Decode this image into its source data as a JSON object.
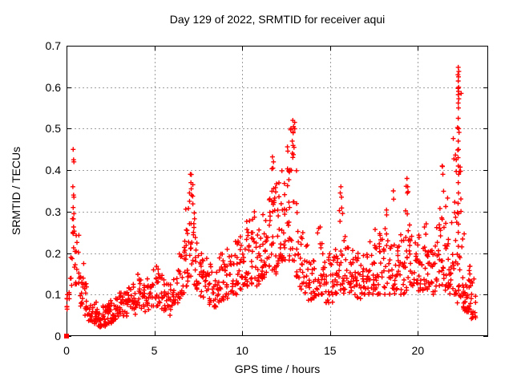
{
  "chart_data": {
    "type": "scatter",
    "title": "Day 129 of 2022, SRMTID for receiver aqui",
    "xlabel": "GPS time / hours",
    "ylabel": "SRMTID / TECUs",
    "xlim": [
      0,
      24
    ],
    "ylim": [
      0,
      0.7
    ],
    "xticks": {
      "values": [
        0,
        5,
        10,
        15,
        20
      ],
      "labels": [
        "0",
        "5",
        "10",
        "15",
        "20"
      ]
    },
    "yticks": {
      "values": [
        0,
        0.1,
        0.2,
        0.3,
        0.4,
        0.5,
        0.6,
        0.7
      ],
      "labels": [
        "0",
        "0.1",
        "0.2",
        "0.3",
        "0.4",
        "0.5",
        "0.6",
        "0.7"
      ]
    },
    "grid": true,
    "grid_color": "#9e9e9e",
    "frame_color": "#000000",
    "marker": "plus",
    "marker_color": "#ff0000",
    "legend": "none",
    "random_seed": 20220129,
    "origin_point": [
      0,
      0
    ],
    "highlight_points": [
      [
        0.03,
        0.065
      ],
      [
        0.05,
        0.1
      ],
      [
        0.04,
        0.09
      ],
      [
        0.38,
        0.45
      ],
      [
        0.4,
        0.425
      ],
      [
        0.42,
        0.42
      ],
      [
        0.36,
        0.36
      ],
      [
        0.4,
        0.34
      ],
      [
        0.42,
        0.335
      ],
      [
        0.38,
        0.31
      ],
      [
        0.42,
        0.295
      ],
      [
        0.4,
        0.263
      ],
      [
        0.44,
        0.253
      ],
      [
        0.36,
        0.25
      ],
      [
        7.05,
        0.39
      ],
      [
        7.0,
        0.345
      ],
      [
        7.08,
        0.37
      ],
      [
        7.1,
        0.355
      ],
      [
        7.12,
        0.34
      ],
      [
        11.72,
        0.432
      ],
      [
        11.78,
        0.42
      ],
      [
        11.75,
        0.405
      ],
      [
        12.88,
        0.52
      ],
      [
        12.92,
        0.505
      ],
      [
        12.9,
        0.49
      ],
      [
        12.85,
        0.47
      ],
      [
        12.95,
        0.455
      ],
      [
        15.62,
        0.36
      ],
      [
        15.58,
        0.345
      ],
      [
        15.65,
        0.335
      ],
      [
        18.6,
        0.35
      ],
      [
        18.62,
        0.33
      ],
      [
        19.38,
        0.38
      ],
      [
        19.42,
        0.36
      ],
      [
        19.4,
        0.345
      ],
      [
        21.38,
        0.41
      ],
      [
        21.42,
        0.39
      ],
      [
        22.3,
        0.648
      ],
      [
        22.33,
        0.638
      ],
      [
        22.28,
        0.63
      ],
      [
        22.31,
        0.625
      ],
      [
        22.3,
        0.615
      ],
      [
        22.32,
        0.6
      ],
      [
        22.29,
        0.597
      ],
      [
        22.31,
        0.59
      ],
      [
        22.3,
        0.582
      ],
      [
        22.33,
        0.572
      ],
      [
        22.3,
        0.562
      ],
      [
        22.31,
        0.55
      ],
      [
        22.3,
        0.525
      ],
      [
        22.32,
        0.5
      ],
      [
        22.3,
        0.47
      ],
      [
        22.31,
        0.45
      ],
      [
        22.29,
        0.43
      ],
      [
        22.3,
        0.41
      ],
      [
        22.32,
        0.39
      ],
      [
        22.3,
        0.37
      ],
      [
        22.31,
        0.345
      ],
      [
        22.29,
        0.32
      ],
      [
        22.3,
        0.295
      ],
      [
        22.31,
        0.27
      ],
      [
        22.3,
        0.25
      ],
      [
        23.05,
        0.042
      ]
    ],
    "density_bins": [
      [
        0.0,
        0.15,
        0.05,
        0.11,
        4
      ],
      [
        0.15,
        0.3,
        0.09,
        0.2,
        6
      ],
      [
        0.3,
        0.5,
        0.16,
        0.3,
        8
      ],
      [
        0.5,
        0.75,
        0.12,
        0.26,
        12
      ],
      [
        0.75,
        1.0,
        0.07,
        0.18,
        14
      ],
      [
        1.0,
        1.25,
        0.05,
        0.13,
        14
      ],
      [
        1.25,
        1.5,
        0.035,
        0.1,
        14
      ],
      [
        1.5,
        1.75,
        0.03,
        0.09,
        15
      ],
      [
        1.75,
        2.0,
        0.02,
        0.08,
        15
      ],
      [
        2.0,
        2.25,
        0.02,
        0.075,
        15
      ],
      [
        2.25,
        2.5,
        0.03,
        0.08,
        15
      ],
      [
        2.5,
        2.75,
        0.03,
        0.09,
        14
      ],
      [
        2.75,
        3.0,
        0.04,
        0.1,
        14
      ],
      [
        3.0,
        3.25,
        0.04,
        0.11,
        14
      ],
      [
        3.25,
        3.5,
        0.04,
        0.11,
        14
      ],
      [
        3.5,
        3.75,
        0.05,
        0.12,
        13
      ],
      [
        3.75,
        4.0,
        0.05,
        0.13,
        13
      ],
      [
        4.0,
        4.25,
        0.06,
        0.15,
        13
      ],
      [
        4.25,
        4.5,
        0.055,
        0.13,
        12
      ],
      [
        4.5,
        4.75,
        0.06,
        0.14,
        12
      ],
      [
        4.75,
        5.0,
        0.07,
        0.16,
        12
      ],
      [
        5.0,
        5.25,
        0.07,
        0.17,
        12
      ],
      [
        5.25,
        5.5,
        0.06,
        0.16,
        12
      ],
      [
        5.5,
        5.75,
        0.05,
        0.14,
        12
      ],
      [
        5.75,
        6.0,
        0.05,
        0.13,
        12
      ],
      [
        6.0,
        6.25,
        0.06,
        0.15,
        12
      ],
      [
        6.25,
        6.5,
        0.08,
        0.2,
        13
      ],
      [
        6.5,
        6.75,
        0.1,
        0.24,
        14
      ],
      [
        6.75,
        7.0,
        0.12,
        0.33,
        16
      ],
      [
        7.0,
        7.25,
        0.14,
        0.39,
        18
      ],
      [
        7.25,
        7.5,
        0.11,
        0.3,
        15
      ],
      [
        7.5,
        7.75,
        0.09,
        0.22,
        13
      ],
      [
        7.75,
        8.0,
        0.08,
        0.19,
        13
      ],
      [
        8.0,
        8.25,
        0.07,
        0.18,
        13
      ],
      [
        8.25,
        8.5,
        0.07,
        0.18,
        13
      ],
      [
        8.5,
        8.75,
        0.08,
        0.19,
        13
      ],
      [
        8.75,
        9.0,
        0.08,
        0.2,
        13
      ],
      [
        9.0,
        9.25,
        0.09,
        0.21,
        13
      ],
      [
        9.25,
        9.5,
        0.1,
        0.22,
        13
      ],
      [
        9.5,
        9.75,
        0.1,
        0.23,
        14
      ],
      [
        9.75,
        10.0,
        0.11,
        0.25,
        14
      ],
      [
        10.0,
        10.25,
        0.12,
        0.26,
        14
      ],
      [
        10.25,
        10.5,
        0.12,
        0.28,
        14
      ],
      [
        10.5,
        10.75,
        0.12,
        0.3,
        15
      ],
      [
        10.75,
        11.0,
        0.12,
        0.28,
        14
      ],
      [
        11.0,
        11.25,
        0.13,
        0.3,
        15
      ],
      [
        11.25,
        11.5,
        0.14,
        0.35,
        16
      ],
      [
        11.5,
        11.75,
        0.15,
        0.43,
        18
      ],
      [
        11.75,
        12.0,
        0.15,
        0.4,
        17
      ],
      [
        12.0,
        12.25,
        0.17,
        0.38,
        16
      ],
      [
        12.25,
        12.5,
        0.18,
        0.42,
        17
      ],
      [
        12.5,
        12.75,
        0.18,
        0.46,
        18
      ],
      [
        12.75,
        13.0,
        0.18,
        0.52,
        18
      ],
      [
        13.0,
        13.25,
        0.14,
        0.4,
        14
      ],
      [
        13.25,
        13.5,
        0.11,
        0.28,
        12
      ],
      [
        13.5,
        13.75,
        0.09,
        0.22,
        12
      ],
      [
        13.75,
        14.0,
        0.08,
        0.2,
        12
      ],
      [
        14.0,
        14.25,
        0.09,
        0.22,
        13
      ],
      [
        14.25,
        14.5,
        0.1,
        0.29,
        14
      ],
      [
        14.5,
        14.75,
        0.1,
        0.25,
        13
      ],
      [
        14.75,
        15.0,
        0.08,
        0.2,
        13
      ],
      [
        15.0,
        15.25,
        0.08,
        0.2,
        13
      ],
      [
        15.25,
        15.5,
        0.09,
        0.24,
        13
      ],
      [
        15.5,
        15.75,
        0.11,
        0.36,
        15
      ],
      [
        15.75,
        16.0,
        0.1,
        0.25,
        13
      ],
      [
        16.0,
        16.25,
        0.1,
        0.22,
        13
      ],
      [
        16.25,
        16.5,
        0.1,
        0.21,
        13
      ],
      [
        16.5,
        16.75,
        0.09,
        0.2,
        13
      ],
      [
        16.75,
        17.0,
        0.1,
        0.2,
        13
      ],
      [
        17.0,
        17.25,
        0.1,
        0.21,
        13
      ],
      [
        17.25,
        17.5,
        0.1,
        0.23,
        13
      ],
      [
        17.5,
        17.75,
        0.1,
        0.28,
        14
      ],
      [
        17.75,
        18.0,
        0.1,
        0.25,
        13
      ],
      [
        18.0,
        18.25,
        0.1,
        0.31,
        14
      ],
      [
        18.25,
        18.5,
        0.1,
        0.25,
        13
      ],
      [
        18.5,
        18.75,
        0.1,
        0.24,
        12
      ],
      [
        18.75,
        19.0,
        0.1,
        0.22,
        12
      ],
      [
        19.0,
        19.25,
        0.1,
        0.25,
        13
      ],
      [
        19.25,
        19.5,
        0.11,
        0.38,
        15
      ],
      [
        19.5,
        19.75,
        0.1,
        0.28,
        13
      ],
      [
        19.75,
        20.0,
        0.1,
        0.23,
        13
      ],
      [
        20.0,
        20.25,
        0.1,
        0.25,
        13
      ],
      [
        20.25,
        20.5,
        0.11,
        0.28,
        14
      ],
      [
        20.5,
        20.75,
        0.1,
        0.25,
        13
      ],
      [
        20.75,
        21.0,
        0.1,
        0.23,
        13
      ],
      [
        21.0,
        21.25,
        0.11,
        0.3,
        14
      ],
      [
        21.25,
        21.5,
        0.12,
        0.41,
        16
      ],
      [
        21.5,
        21.75,
        0.11,
        0.35,
        15
      ],
      [
        21.75,
        22.0,
        0.1,
        0.3,
        15
      ],
      [
        22.0,
        22.25,
        0.1,
        0.5,
        18
      ],
      [
        22.25,
        22.5,
        0.08,
        0.65,
        22
      ],
      [
        22.5,
        22.75,
        0.06,
        0.25,
        20
      ],
      [
        22.75,
        23.0,
        0.05,
        0.17,
        22
      ],
      [
        23.0,
        23.3,
        0.04,
        0.14,
        16
      ]
    ]
  }
}
